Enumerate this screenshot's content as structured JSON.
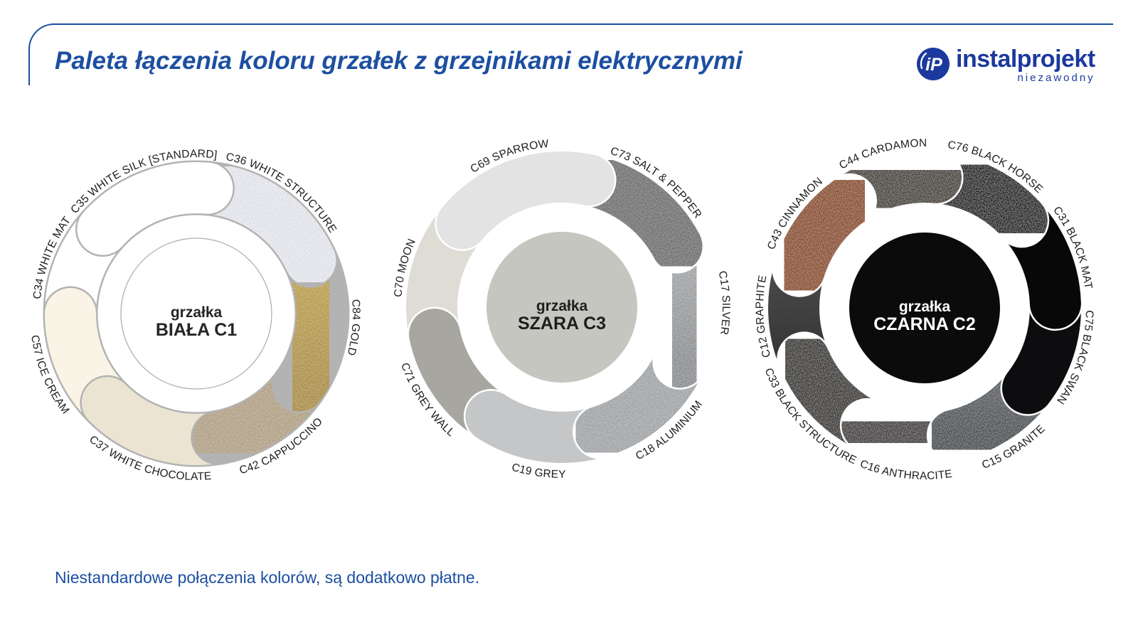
{
  "header": {
    "title": "Paleta łączenia koloru grzałek z grzejnikami elektrycznymi",
    "accent_color": "#1d4fa1",
    "brand": {
      "monogram": "iP",
      "name": "instalprojekt",
      "tagline": "niezawodny",
      "color": "#1c3a9e"
    }
  },
  "footer": {
    "note": "Niestandardowe połączenia kolorów, są dodatkowo płatne."
  },
  "chart_data": {
    "type": "palette-wheels",
    "label_color": "#1d1d1d",
    "wheels": [
      {
        "name": "grzalka-biala-c1",
        "center": {
          "line1": "grzałka",
          "line2": "BIAŁA C1",
          "bg": "#ffffff",
          "text_color": "#262626",
          "outline": "#b0b0b0"
        },
        "divider": "#b3b3b3",
        "segments": [
          {
            "label": "C35 WHITE SILK [STANDARD]",
            "color": "#ffffff",
            "arc": [
              312,
              365
            ],
            "textured": false
          },
          {
            "label": "C36 WHITE STRUCTURE",
            "color": "#e9ebf1",
            "arc": [
              5,
              65
            ],
            "textured": true
          },
          {
            "label": "C84 GOLD",
            "color": "#c6a743",
            "color2": "#b09138",
            "arc": [
              65,
              125
            ],
            "textured": true
          },
          {
            "label": "C42 CAPPUCCINO",
            "color": "#b6a487",
            "arc": [
              125,
              170
            ],
            "textured": true
          },
          {
            "label": "C37 WHITE CHOCOLATE",
            "color": "#ebe4d3",
            "arc": [
              170,
              225
            ],
            "textured": false
          },
          {
            "label": "C57 ICE CREAM",
            "color": "#faf4e6",
            "arc": [
              225,
              270
            ],
            "textured": false
          },
          {
            "label": "C34 WHITE MAT",
            "color": "#ffffff",
            "arc": [
              270,
              312
            ],
            "textured": false
          }
        ]
      },
      {
        "name": "grzalka-szara-c3",
        "center": {
          "line1": "grzałka",
          "line2": "SZARA C3",
          "bg": "#c6c6c1",
          "text_color": "#1e1e1e",
          "outline": ""
        },
        "divider": "#ffffff",
        "segments": [
          {
            "label": "C69 SPARROW",
            "color": "#e3e3e3",
            "arc": [
              310,
              372
            ],
            "textured": false
          },
          {
            "label": "C73 SALT & PEPPER",
            "color": "#6f6f6f",
            "arc": [
              12,
              62
            ],
            "textured": true
          },
          {
            "label": "C17 SILVER",
            "color": "#adb0b2",
            "color2": "#8e9194",
            "arc": [
              62,
              115
            ],
            "textured": true
          },
          {
            "label": "C18 ALUMINIUM",
            "color": "#a6a9ab",
            "arc": [
              115,
              163
            ],
            "textured": true
          },
          {
            "label": "C19 GREY",
            "color": "#c5c6c8",
            "arc": [
              163,
              213
            ],
            "textured": false
          },
          {
            "label": "C71 GREY WALL",
            "color": "#a8a6a1",
            "arc": [
              213,
              258
            ],
            "textured": false
          },
          {
            "label": "C70 MOON",
            "color": "#dedcd5",
            "arc": [
              258,
              310
            ],
            "textured": false
          }
        ]
      },
      {
        "name": "grzalka-czarna-c2",
        "center": {
          "line1": "grzałka",
          "line2": "CZARNA C2",
          "bg": "#0b0b0b",
          "text_color": "#ffffff",
          "outline": ""
        },
        "divider": "#ffffff",
        "segments": [
          {
            "label": "C43 CINNAMON",
            "color": "#8f4819",
            "arc": [
              287,
              325
            ],
            "textured": true
          },
          {
            "label": "C44 CARDAMON",
            "color": "#433a32",
            "arc": [
              325,
              365
            ],
            "textured": true
          },
          {
            "label": "C76 BLACK HORSE",
            "color": "#0c0c0c",
            "arc": [
              5,
              48
            ],
            "textured": true
          },
          {
            "label": "C31 BLACK MAT",
            "color": "#080808",
            "arc": [
              48,
              88
            ],
            "textured": false
          },
          {
            "label": "C75 BLACK SWAN",
            "color": "#0d0d0f",
            "arc": [
              88,
              128
            ],
            "textured": false
          },
          {
            "label": "C15 GRANITE",
            "color": "#565b60",
            "color2": "#43484c",
            "arc": [
              128,
              167
            ],
            "textured": true
          },
          {
            "label": "C16 ANTHRACITE",
            "color": "#3b3634",
            "arc": [
              167,
              206
            ],
            "textured": true
          },
          {
            "label": "C33 BLACK STRUCTURE",
            "color": "#2d2a27",
            "arc": [
              206,
              247
            ],
            "textured": true
          },
          {
            "label": "C12 GRAPHITE",
            "color": "#4a4a4a",
            "color2": "#353535",
            "arc": [
              247,
              287
            ],
            "textured": false
          }
        ]
      }
    ]
  }
}
